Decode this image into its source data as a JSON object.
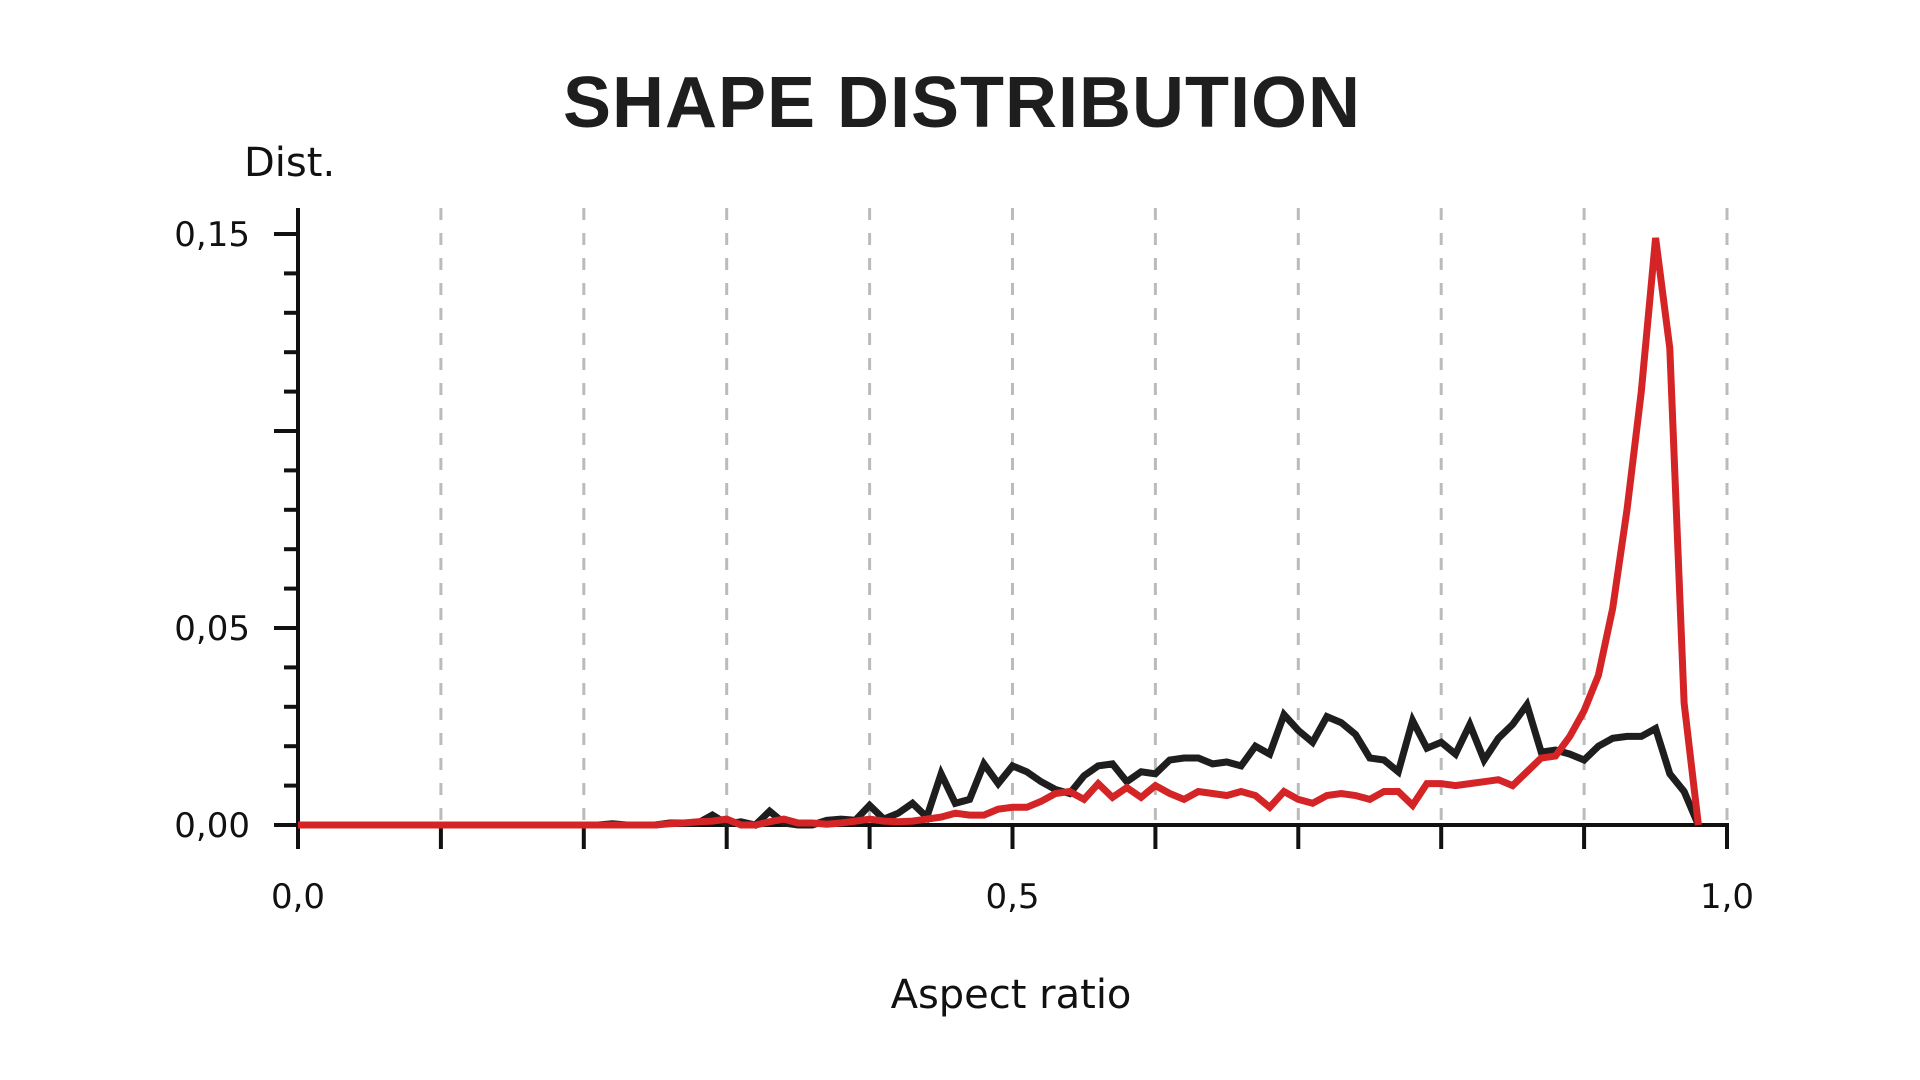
{
  "chart_data": {
    "type": "line",
    "title": "SHAPE DISTRIBUTION",
    "xlabel": "Aspect ratio",
    "ylabel": "Dist.",
    "xlim": [
      0,
      1.0
    ],
    "ylim": [
      0,
      0.15
    ],
    "x_tick_labels": [
      {
        "value": 0.0,
        "label": "0,0"
      },
      {
        "value": 0.5,
        "label": "0,5"
      },
      {
        "value": 1.0,
        "label": "1,0"
      }
    ],
    "y_tick_labels": [
      {
        "value": 0.0,
        "label": "0,00"
      },
      {
        "value": 0.05,
        "label": "0,05"
      },
      {
        "value": 0.15,
        "label": "0,15"
      }
    ],
    "grid": "vertical dashed every 0.1",
    "x_start": 0.0,
    "x_step": 0.01,
    "series": [
      {
        "color": "#1e1e1e",
        "values": [
          0,
          0,
          0,
          0,
          0,
          0,
          0,
          0,
          0,
          0,
          0,
          0,
          0,
          0,
          0,
          0,
          0,
          0,
          0,
          0,
          0,
          0,
          0.0003,
          0,
          0,
          0,
          0.0005,
          0.0005,
          0.0005,
          0.0025,
          0.0003,
          0.0008,
          0,
          0.0035,
          0.0005,
          0,
          0,
          0.0012,
          0.0015,
          0.0012,
          0.005,
          0.0015,
          0.003,
          0.0055,
          0.002,
          0.013,
          0.0055,
          0.0065,
          0.0155,
          0.0105,
          0.015,
          0.0135,
          0.011,
          0.009,
          0.008,
          0.0125,
          0.015,
          0.0155,
          0.011,
          0.0135,
          0.013,
          0.0165,
          0.017,
          0.017,
          0.0155,
          0.016,
          0.015,
          0.02,
          0.018,
          0.028,
          0.024,
          0.021,
          0.0275,
          0.026,
          0.023,
          0.017,
          0.0165,
          0.0135,
          0.0265,
          0.0195,
          0.021,
          0.018,
          0.0255,
          0.0165,
          0.022,
          0.0255,
          0.0305,
          0.0185,
          0.019,
          0.018,
          0.0165,
          0.02,
          0.022,
          0.0225,
          0.0225,
          0.0245,
          0.013,
          0.0085,
          0
        ]
      },
      {
        "color": "#d42426",
        "values": [
          0,
          0,
          0,
          0,
          0,
          0,
          0,
          0,
          0,
          0,
          0,
          0,
          0,
          0,
          0,
          0,
          0,
          0,
          0,
          0,
          0,
          0,
          0,
          0,
          0,
          0,
          0.0003,
          0.0005,
          0.0008,
          0.001,
          0.0015,
          0,
          0,
          0.0008,
          0.0015,
          0.0005,
          0.0005,
          0.0002,
          0.0005,
          0.001,
          0.0015,
          0.001,
          0.0008,
          0.001,
          0.0015,
          0.002,
          0.003,
          0.0025,
          0.0025,
          0.004,
          0.0045,
          0.0045,
          0.006,
          0.008,
          0.0085,
          0.0065,
          0.0105,
          0.007,
          0.0095,
          0.007,
          0.01,
          0.008,
          0.0065,
          0.0085,
          0.008,
          0.0075,
          0.0085,
          0.0075,
          0.0045,
          0.0085,
          0.0065,
          0.0055,
          0.0075,
          0.008,
          0.0075,
          0.0065,
          0.0085,
          0.0085,
          0.005,
          0.0105,
          0.0105,
          0.01,
          0.0105,
          0.011,
          0.0115,
          0.01,
          0.0135,
          0.017,
          0.0175,
          0.0225,
          0.029,
          0.038,
          0.055,
          0.08,
          0.11,
          0.149,
          0.121,
          0.031,
          0
        ]
      }
    ]
  }
}
